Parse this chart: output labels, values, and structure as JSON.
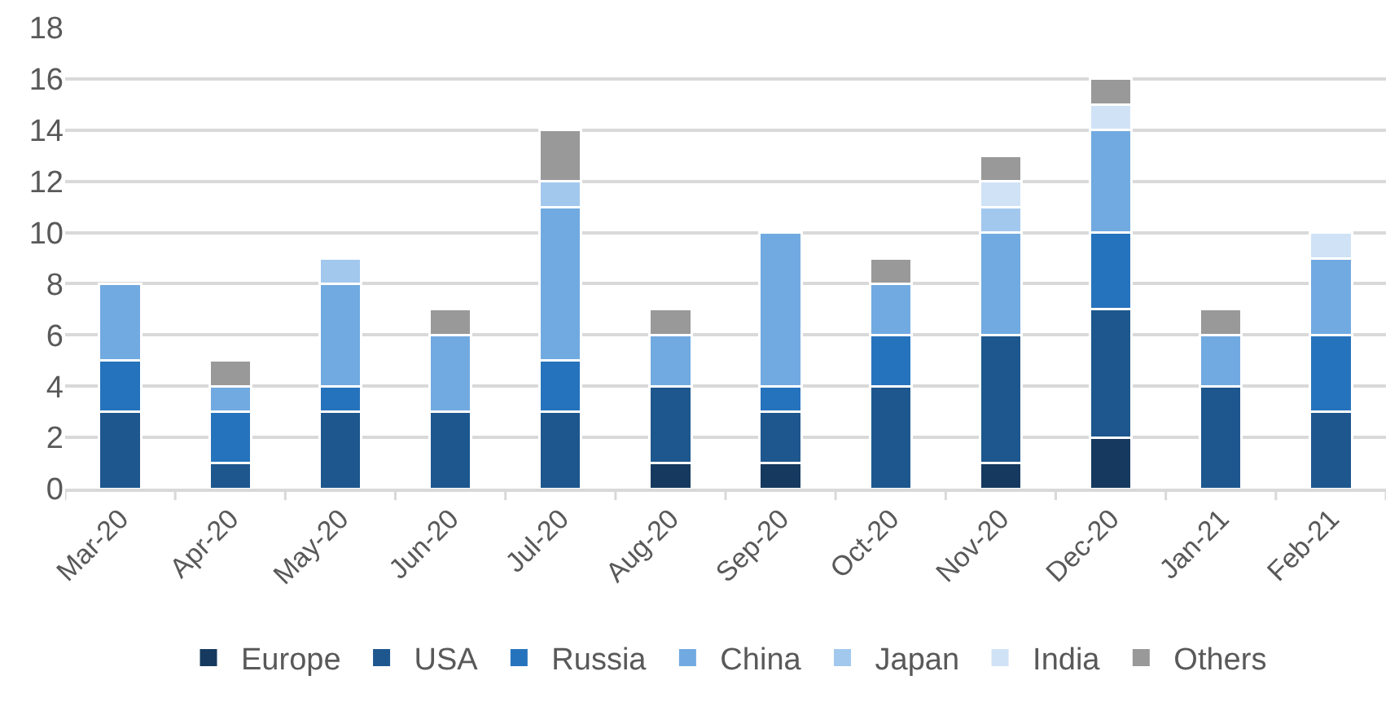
{
  "chart_data": {
    "type": "bar",
    "stacked": true,
    "categories": [
      "Mar-20",
      "Apr-20",
      "May-20",
      "Jun-20",
      "Jul-20",
      "Aug-20",
      "Sep-20",
      "Oct-20",
      "Nov-20",
      "Dec-20",
      "Jan-21",
      "Feb-21"
    ],
    "series": [
      {
        "name": "Europe",
        "color": "#163a5f",
        "values": [
          null,
          null,
          null,
          null,
          null,
          1,
          1,
          null,
          1,
          2,
          null,
          null
        ]
      },
      {
        "name": "USA",
        "color": "#1d578e",
        "values": [
          3,
          1,
          3,
          3,
          3,
          3,
          2,
          4,
          5,
          5,
          4,
          3
        ]
      },
      {
        "name": "Russia",
        "color": "#2673bd",
        "values": [
          2,
          2,
          1,
          null,
          2,
          null,
          1,
          2,
          null,
          3,
          null,
          3
        ]
      },
      {
        "name": "China",
        "color": "#71aae1",
        "values": [
          3,
          1,
          4,
          3,
          6,
          2,
          6,
          2,
          4,
          4,
          2,
          3
        ]
      },
      {
        "name": "Japan",
        "color": "#a2c8ee",
        "values": [
          null,
          null,
          1,
          null,
          1,
          null,
          null,
          null,
          1,
          null,
          null,
          null
        ]
      },
      {
        "name": "India",
        "color": "#d0e3f6",
        "values": [
          null,
          null,
          null,
          null,
          null,
          null,
          null,
          null,
          1,
          1,
          null,
          1
        ]
      },
      {
        "name": "Others",
        "color": "#999999",
        "values": [
          null,
          1,
          null,
          1,
          2,
          1,
          null,
          1,
          1,
          1,
          1,
          null
        ]
      }
    ],
    "ylim": [
      0,
      18
    ],
    "yticks": [
      0,
      2,
      4,
      6,
      8,
      10,
      12,
      14,
      16,
      18
    ],
    "grid": "y",
    "legend": "bottom"
  }
}
